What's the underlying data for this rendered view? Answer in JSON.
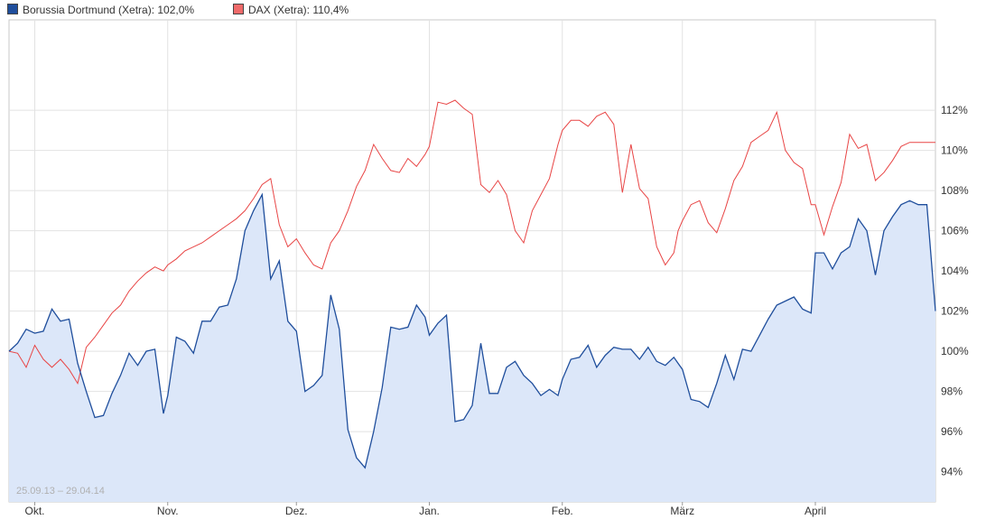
{
  "legend": [
    {
      "label": "Borussia Dortmund (Xetra): 102,0%",
      "color": "#1f4e9c"
    },
    {
      "label": "DAX (Xetra): 110,4%",
      "color": "#f06a6a"
    }
  ],
  "chart_data": {
    "type": "line",
    "title": "",
    "xlabel": "",
    "ylabel": "",
    "date_range_label": "25.09.13 – 29.04.14",
    "x_start": "2013-09-25",
    "x_end": "2014-04-29",
    "ylim": [
      92.5,
      116.5
    ],
    "y_ticks": [
      94,
      96,
      98,
      100,
      102,
      104,
      106,
      108,
      110,
      112
    ],
    "y_tick_labels": [
      "94%",
      "96%",
      "98%",
      "100%",
      "102%",
      "104%",
      "106%",
      "108%",
      "110%",
      "112%"
    ],
    "x_ticks": [
      {
        "label": "Okt.",
        "date": "2013-10-01"
      },
      {
        "label": "Nov.",
        "date": "2013-11-01"
      },
      {
        "label": "Dez.",
        "date": "2013-12-01"
      },
      {
        "label": "Jan.",
        "date": "2014-01-01"
      },
      {
        "label": "Feb.",
        "date": "2014-02-01"
      },
      {
        "label": "März",
        "date": "2014-03-01"
      },
      {
        "label": "April",
        "date": "2014-04-01"
      }
    ],
    "grid": true,
    "y_axis_position": "right",
    "legend_position": "top-left",
    "series": [
      {
        "name": "Borussia Dortmund (Xetra)",
        "style": "area",
        "color": "#1f4e9c",
        "fill": "#dce7f9",
        "points": [
          [
            "2013-09-25",
            100.0
          ],
          [
            "2013-09-27",
            100.4
          ],
          [
            "2013-09-29",
            101.1
          ],
          [
            "2013-10-01",
            100.9
          ],
          [
            "2013-10-03",
            101.0
          ],
          [
            "2013-10-05",
            102.1
          ],
          [
            "2013-10-07",
            101.5
          ],
          [
            "2013-10-09",
            101.6
          ],
          [
            "2013-10-11",
            99.4
          ],
          [
            "2013-10-13",
            98.0
          ],
          [
            "2013-10-15",
            96.7
          ],
          [
            "2013-10-17",
            96.8
          ],
          [
            "2013-10-19",
            97.9
          ],
          [
            "2013-10-21",
            98.8
          ],
          [
            "2013-10-23",
            99.9
          ],
          [
            "2013-10-25",
            99.3
          ],
          [
            "2013-10-27",
            100.0
          ],
          [
            "2013-10-29",
            100.1
          ],
          [
            "2013-10-31",
            96.9
          ],
          [
            "2013-11-01",
            97.8
          ],
          [
            "2013-11-03",
            100.7
          ],
          [
            "2013-11-05",
            100.5
          ],
          [
            "2013-11-07",
            99.9
          ],
          [
            "2013-11-09",
            101.5
          ],
          [
            "2013-11-11",
            101.5
          ],
          [
            "2013-11-13",
            102.2
          ],
          [
            "2013-11-15",
            102.3
          ],
          [
            "2013-11-17",
            103.6
          ],
          [
            "2013-11-19",
            106.0
          ],
          [
            "2013-11-21",
            107.0
          ],
          [
            "2013-11-23",
            107.8
          ],
          [
            "2013-11-25",
            103.6
          ],
          [
            "2013-11-27",
            104.5
          ],
          [
            "2013-11-29",
            101.5
          ],
          [
            "2013-12-01",
            101.0
          ],
          [
            "2013-12-03",
            98.0
          ],
          [
            "2013-12-05",
            98.3
          ],
          [
            "2013-12-07",
            98.8
          ],
          [
            "2013-12-09",
            102.8
          ],
          [
            "2013-12-11",
            101.1
          ],
          [
            "2013-12-13",
            96.1
          ],
          [
            "2013-12-15",
            94.7
          ],
          [
            "2013-12-17",
            94.2
          ],
          [
            "2013-12-19",
            96.0
          ],
          [
            "2013-12-21",
            98.2
          ],
          [
            "2013-12-23",
            101.2
          ],
          [
            "2013-12-25",
            101.1
          ],
          [
            "2013-12-27",
            101.2
          ],
          [
            "2013-12-29",
            102.3
          ],
          [
            "2013-12-31",
            101.7
          ],
          [
            "2014-01-01",
            100.8
          ],
          [
            "2014-01-03",
            101.4
          ],
          [
            "2014-01-05",
            101.8
          ],
          [
            "2014-01-07",
            96.5
          ],
          [
            "2014-01-09",
            96.6
          ],
          [
            "2014-01-11",
            97.3
          ],
          [
            "2014-01-13",
            100.4
          ],
          [
            "2014-01-15",
            97.9
          ],
          [
            "2014-01-17",
            97.9
          ],
          [
            "2014-01-19",
            99.2
          ],
          [
            "2014-01-21",
            99.5
          ],
          [
            "2014-01-23",
            98.8
          ],
          [
            "2014-01-25",
            98.4
          ],
          [
            "2014-01-27",
            97.8
          ],
          [
            "2014-01-29",
            98.1
          ],
          [
            "2014-01-31",
            97.8
          ],
          [
            "2014-02-01",
            98.6
          ],
          [
            "2014-02-03",
            99.6
          ],
          [
            "2014-02-05",
            99.7
          ],
          [
            "2014-02-07",
            100.3
          ],
          [
            "2014-02-09",
            99.2
          ],
          [
            "2014-02-11",
            99.8
          ],
          [
            "2014-02-13",
            100.2
          ],
          [
            "2014-02-15",
            100.1
          ],
          [
            "2014-02-17",
            100.1
          ],
          [
            "2014-02-19",
            99.6
          ],
          [
            "2014-02-21",
            100.2
          ],
          [
            "2014-02-23",
            99.5
          ],
          [
            "2014-02-25",
            99.3
          ],
          [
            "2014-02-27",
            99.7
          ],
          [
            "2014-02-28",
            99.4
          ],
          [
            "2014-03-01",
            99.1
          ],
          [
            "2014-03-03",
            97.6
          ],
          [
            "2014-03-05",
            97.5
          ],
          [
            "2014-03-07",
            97.2
          ],
          [
            "2014-03-09",
            98.4
          ],
          [
            "2014-03-11",
            99.8
          ],
          [
            "2014-03-13",
            98.6
          ],
          [
            "2014-03-15",
            100.1
          ],
          [
            "2014-03-17",
            100.0
          ],
          [
            "2014-03-19",
            100.8
          ],
          [
            "2014-03-21",
            101.6
          ],
          [
            "2014-03-23",
            102.3
          ],
          [
            "2014-03-25",
            102.5
          ],
          [
            "2014-03-27",
            102.7
          ],
          [
            "2014-03-29",
            102.1
          ],
          [
            "2014-03-31",
            101.9
          ],
          [
            "2014-04-01",
            104.9
          ],
          [
            "2014-04-03",
            104.9
          ],
          [
            "2014-04-05",
            104.1
          ],
          [
            "2014-04-07",
            104.9
          ],
          [
            "2014-04-09",
            105.2
          ],
          [
            "2014-04-11",
            106.6
          ],
          [
            "2014-04-13",
            106.0
          ],
          [
            "2014-04-15",
            103.8
          ],
          [
            "2014-04-17",
            106.0
          ],
          [
            "2014-04-19",
            106.7
          ],
          [
            "2014-04-21",
            107.3
          ],
          [
            "2014-04-23",
            107.5
          ],
          [
            "2014-04-25",
            107.3
          ],
          [
            "2014-04-27",
            107.3
          ],
          [
            "2014-04-29",
            102.0
          ]
        ]
      },
      {
        "name": "DAX (Xetra)",
        "style": "line",
        "color": "#e84545",
        "points": [
          [
            "2013-09-25",
            100.0
          ],
          [
            "2013-09-27",
            99.9
          ],
          [
            "2013-09-29",
            99.2
          ],
          [
            "2013-10-01",
            100.3
          ],
          [
            "2013-10-03",
            99.6
          ],
          [
            "2013-10-05",
            99.2
          ],
          [
            "2013-10-07",
            99.6
          ],
          [
            "2013-10-09",
            99.1
          ],
          [
            "2013-10-11",
            98.4
          ],
          [
            "2013-10-13",
            100.2
          ],
          [
            "2013-10-15",
            100.7
          ],
          [
            "2013-10-17",
            101.3
          ],
          [
            "2013-10-19",
            101.9
          ],
          [
            "2013-10-21",
            102.3
          ],
          [
            "2013-10-23",
            103.0
          ],
          [
            "2013-10-25",
            103.5
          ],
          [
            "2013-10-27",
            103.9
          ],
          [
            "2013-10-29",
            104.2
          ],
          [
            "2013-10-31",
            104.0
          ],
          [
            "2013-11-01",
            104.3
          ],
          [
            "2013-11-03",
            104.6
          ],
          [
            "2013-11-05",
            105.0
          ],
          [
            "2013-11-07",
            105.2
          ],
          [
            "2013-11-09",
            105.4
          ],
          [
            "2013-11-11",
            105.7
          ],
          [
            "2013-11-13",
            106.0
          ],
          [
            "2013-11-15",
            106.3
          ],
          [
            "2013-11-17",
            106.6
          ],
          [
            "2013-11-19",
            107.0
          ],
          [
            "2013-11-21",
            107.6
          ],
          [
            "2013-11-23",
            108.3
          ],
          [
            "2013-11-25",
            108.6
          ],
          [
            "2013-11-27",
            106.3
          ],
          [
            "2013-11-29",
            105.2
          ],
          [
            "2013-12-01",
            105.6
          ],
          [
            "2013-12-03",
            104.9
          ],
          [
            "2013-12-05",
            104.3
          ],
          [
            "2013-12-07",
            104.1
          ],
          [
            "2013-12-09",
            105.4
          ],
          [
            "2013-12-11",
            106.0
          ],
          [
            "2013-12-13",
            107.0
          ],
          [
            "2013-12-15",
            108.2
          ],
          [
            "2013-12-17",
            109.0
          ],
          [
            "2013-12-19",
            110.3
          ],
          [
            "2013-12-21",
            109.6
          ],
          [
            "2013-12-23",
            109.0
          ],
          [
            "2013-12-25",
            108.9
          ],
          [
            "2013-12-27",
            109.6
          ],
          [
            "2013-12-29",
            109.2
          ],
          [
            "2013-12-31",
            109.8
          ],
          [
            "2014-01-01",
            110.2
          ],
          [
            "2014-01-03",
            112.4
          ],
          [
            "2014-01-05",
            112.3
          ],
          [
            "2014-01-07",
            112.5
          ],
          [
            "2014-01-09",
            112.1
          ],
          [
            "2014-01-11",
            111.8
          ],
          [
            "2014-01-13",
            108.3
          ],
          [
            "2014-01-15",
            107.9
          ],
          [
            "2014-01-17",
            108.5
          ],
          [
            "2014-01-19",
            107.8
          ],
          [
            "2014-01-21",
            106.0
          ],
          [
            "2014-01-23",
            105.4
          ],
          [
            "2014-01-25",
            107.0
          ],
          [
            "2014-01-27",
            107.8
          ],
          [
            "2014-01-29",
            108.6
          ],
          [
            "2014-01-31",
            110.3
          ],
          [
            "2014-02-01",
            111.0
          ],
          [
            "2014-02-03",
            111.5
          ],
          [
            "2014-02-05",
            111.5
          ],
          [
            "2014-02-07",
            111.2
          ],
          [
            "2014-02-09",
            111.7
          ],
          [
            "2014-02-11",
            111.9
          ],
          [
            "2014-02-13",
            111.3
          ],
          [
            "2014-02-15",
            107.9
          ],
          [
            "2014-02-17",
            110.3
          ],
          [
            "2014-02-19",
            108.1
          ],
          [
            "2014-02-21",
            107.6
          ],
          [
            "2014-02-23",
            105.2
          ],
          [
            "2014-02-25",
            104.3
          ],
          [
            "2014-02-27",
            104.9
          ],
          [
            "2014-02-28",
            106.0
          ],
          [
            "2014-03-01",
            106.5
          ],
          [
            "2014-03-03",
            107.3
          ],
          [
            "2014-03-05",
            107.5
          ],
          [
            "2014-03-07",
            106.4
          ],
          [
            "2014-03-09",
            105.9
          ],
          [
            "2014-03-11",
            107.1
          ],
          [
            "2014-03-13",
            108.5
          ],
          [
            "2014-03-15",
            109.2
          ],
          [
            "2014-03-17",
            110.4
          ],
          [
            "2014-03-19",
            110.7
          ],
          [
            "2014-03-21",
            111.0
          ],
          [
            "2014-03-23",
            111.9
          ],
          [
            "2014-03-25",
            110.0
          ],
          [
            "2014-03-27",
            109.4
          ],
          [
            "2014-03-29",
            109.1
          ],
          [
            "2014-03-31",
            107.3
          ],
          [
            "2014-04-01",
            107.3
          ],
          [
            "2014-04-03",
            105.8
          ],
          [
            "2014-04-05",
            107.2
          ],
          [
            "2014-04-07",
            108.4
          ],
          [
            "2014-04-09",
            110.8
          ],
          [
            "2014-04-11",
            110.1
          ],
          [
            "2014-04-13",
            110.3
          ],
          [
            "2014-04-15",
            108.5
          ],
          [
            "2014-04-17",
            108.9
          ],
          [
            "2014-04-19",
            109.5
          ],
          [
            "2014-04-21",
            110.2
          ],
          [
            "2014-04-23",
            110.4
          ],
          [
            "2014-04-25",
            110.4
          ],
          [
            "2014-04-27",
            110.4
          ],
          [
            "2014-04-29",
            110.4
          ]
        ]
      }
    ]
  }
}
